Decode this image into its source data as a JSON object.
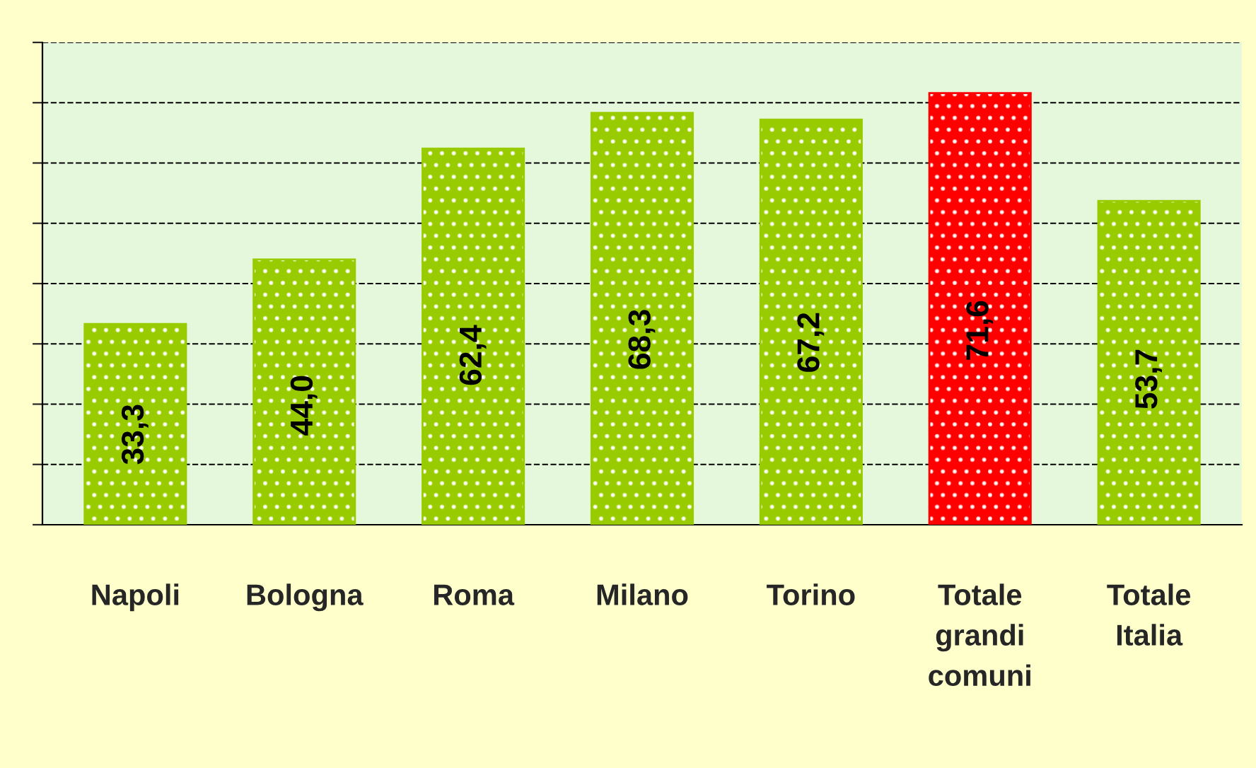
{
  "chart_data": {
    "type": "bar",
    "categories": [
      "Napoli",
      "Bologna",
      "Roma",
      "Milano",
      "Torino",
      "Totale\ngrandi\ncomuni",
      "Totale\nItalia"
    ],
    "values": [
      33.3,
      44.0,
      62.4,
      68.3,
      67.2,
      71.6,
      53.7
    ],
    "value_labels": [
      "33,3",
      "44,0",
      "62,4",
      "68,3",
      "67,2",
      "71,6",
      "53,7"
    ],
    "colors": [
      "#99cc00",
      "#99cc00",
      "#99cc00",
      "#99cc00",
      "#99cc00",
      "#ff0000",
      "#99cc00"
    ],
    "ylim": [
      0,
      80
    ],
    "yticks": [
      {
        "value": 0,
        "label": null
      },
      {
        "value": 10,
        "label": null
      },
      {
        "value": 20,
        "label": null
      },
      {
        "value": 30,
        "label": null
      },
      {
        "value": 40,
        "label": null
      },
      {
        "value": 50,
        "label": null
      },
      {
        "value": 60,
        "label": null
      },
      {
        "value": 70,
        "label": null
      },
      {
        "value": 80,
        "label": null
      }
    ],
    "tick_labels": "x",
    "grid": "y",
    "line_style": "dashed"
  }
}
